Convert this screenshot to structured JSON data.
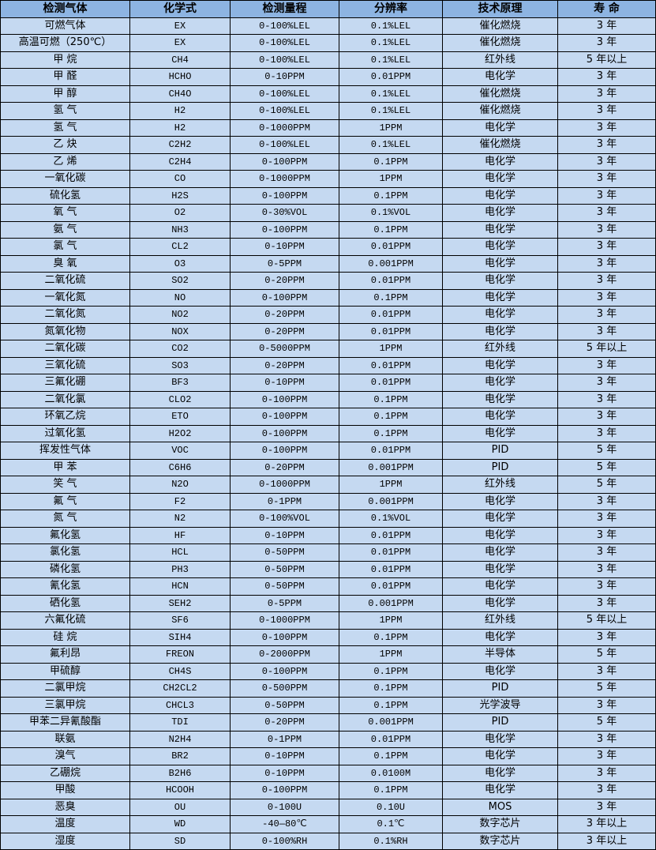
{
  "colors": {
    "header_bg": "#8db4e2",
    "row_bg": "#c5d9f1"
  },
  "headers": [
    "检测气体",
    "化学式",
    "检测量程",
    "分辨率",
    "技术原理",
    "寿 命"
  ],
  "rows": [
    [
      "可燃气体",
      "EX",
      "0-100%LEL",
      "0.1%LEL",
      "催化燃烧",
      "3 年"
    ],
    [
      "高温可燃（250℃）",
      "EX",
      "0-100%LEL",
      "0.1%LEL",
      "催化燃烧",
      "3 年"
    ],
    [
      "甲 烷",
      "CH4",
      "0-100%LEL",
      "0.1%LEL",
      "红外线",
      "5 年以上"
    ],
    [
      "甲 醛",
      "HCHO",
      "0-10PPM",
      "0.01PPM",
      "电化学",
      "3 年"
    ],
    [
      "甲 醇",
      "CH4O",
      "0-100%LEL",
      "0.1%LEL",
      "催化燃烧",
      "3 年"
    ],
    [
      "氢 气",
      "H2",
      "0-100%LEL",
      "0.1%LEL",
      "催化燃烧",
      "3 年"
    ],
    [
      "氢 气",
      "H2",
      "0-1000PPM",
      "1PPM",
      "电化学",
      "3 年"
    ],
    [
      "乙 炔",
      "C2H2",
      "0-100%LEL",
      "0.1%LEL",
      "催化燃烧",
      "3 年"
    ],
    [
      "乙 烯",
      "C2H4",
      "0-100PPM",
      "0.1PPM",
      "电化学",
      "3 年"
    ],
    [
      "一氧化碳",
      "CO",
      "0-1000PPM",
      "1PPM",
      "电化学",
      "3 年"
    ],
    [
      "硫化氢",
      "H2S",
      "0-100PPM",
      "0.1PPM",
      "电化学",
      "3 年"
    ],
    [
      "氧 气",
      "O2",
      "0-30%VOL",
      "0.1%VOL",
      "电化学",
      "3 年"
    ],
    [
      "氨 气",
      "NH3",
      "0-100PPM",
      "0.1PPM",
      "电化学",
      "3 年"
    ],
    [
      "氯 气",
      "CL2",
      "0-10PPM",
      "0.01PPM",
      "电化学",
      "3 年"
    ],
    [
      "臭 氧",
      "O3",
      "0-5PPM",
      "0.001PPM",
      "电化学",
      "3 年"
    ],
    [
      "二氧化硫",
      "SO2",
      "0-20PPM",
      "0.01PPM",
      "电化学",
      "3 年"
    ],
    [
      "一氧化氮",
      "NO",
      "0-100PPM",
      "0.1PPM",
      "电化学",
      "3 年"
    ],
    [
      "二氧化氮",
      "NO2",
      "0-20PPM",
      "0.01PPM",
      "电化学",
      "3 年"
    ],
    [
      "氮氧化物",
      "NOX",
      "0-20PPM",
      "0.01PPM",
      "电化学",
      "3 年"
    ],
    [
      "二氧化碳",
      "CO2",
      "0-5000PPM",
      "1PPM",
      "红外线",
      "5 年以上"
    ],
    [
      "三氧化硫",
      "SO3",
      "0-20PPM",
      "0.01PPM",
      "电化学",
      "3 年"
    ],
    [
      "三氟化硼",
      "BF3",
      "0-10PPM",
      "0.01PPM",
      "电化学",
      "3 年"
    ],
    [
      "二氧化氯",
      "CLO2",
      "0-100PPM",
      "0.1PPM",
      "电化学",
      "3 年"
    ],
    [
      "环氧乙烷",
      "ETO",
      "0-100PPM",
      "0.1PPM",
      "电化学",
      "3 年"
    ],
    [
      "过氧化氢",
      "H2O2",
      "0-100PPM",
      "0.1PPM",
      "电化学",
      "3 年"
    ],
    [
      "挥发性气体",
      "VOC",
      "0-100PPM",
      "0.01PPM",
      "PID",
      "5 年"
    ],
    [
      "甲 苯",
      "C6H6",
      "0-20PPM",
      "0.001PPM",
      "PID",
      "5 年"
    ],
    [
      "笑 气",
      "N2O",
      "0-1000PPM",
      "1PPM",
      "红外线",
      "5 年"
    ],
    [
      "氟 气",
      "F2",
      "0-1PPM",
      "0.001PPM",
      "电化学",
      "3 年"
    ],
    [
      "氮 气",
      "N2",
      "0-100%VOL",
      "0.1%VOL",
      "电化学",
      "3 年"
    ],
    [
      "氟化氢",
      "HF",
      "0-10PPM",
      "0.01PPM",
      "电化学",
      "3 年"
    ],
    [
      "氯化氢",
      "HCL",
      "0-50PPM",
      "0.01PPM",
      "电化学",
      "3 年"
    ],
    [
      "磷化氢",
      "PH3",
      "0-50PPM",
      "0.01PPM",
      "电化学",
      "3 年"
    ],
    [
      "氰化氢",
      "HCN",
      "0-50PPM",
      "0.01PPM",
      "电化学",
      "3 年"
    ],
    [
      "硒化氢",
      "SEH2",
      "0-5PPM",
      "0.001PPM",
      "电化学",
      "3 年"
    ],
    [
      "六氟化硫",
      "SF6",
      "0-1000PPM",
      "1PPM",
      "红外线",
      "5 年以上"
    ],
    [
      "硅 烷",
      "SIH4",
      "0-100PPM",
      "0.1PPM",
      "电化学",
      "3 年"
    ],
    [
      "氟利昂",
      "FREON",
      "0-2000PPM",
      "1PPM",
      "半导体",
      "5 年"
    ],
    [
      "甲硫醇",
      "CH4S",
      "0-100PPM",
      "0.1PPM",
      "电化学",
      "3 年"
    ],
    [
      "二氯甲烷",
      "CH2CL2",
      "0-500PPM",
      "0.1PPM",
      "PID",
      "5 年"
    ],
    [
      "三氯甲烷",
      "CHCL3",
      "0-50PPM",
      "0.1PPM",
      "光学波导",
      "3 年"
    ],
    [
      "甲苯二异氰酸酯",
      "TDI",
      "0-20PPM",
      "0.001PPM",
      "PID",
      "5 年"
    ],
    [
      "联氨",
      "N2H4",
      "0-1PPM",
      "0.01PPM",
      "电化学",
      "3 年"
    ],
    [
      "溴气",
      "BR2",
      "0-10PPM",
      "0.1PPM",
      "电化学",
      "3 年"
    ],
    [
      "乙硼烷",
      "B2H6",
      "0-10PPM",
      "0.0100M",
      "电化学",
      "3 年"
    ],
    [
      "甲酸",
      "HCOOH",
      "0-100PPM",
      "0.1PPM",
      "电化学",
      "3 年"
    ],
    [
      "恶臭",
      "OU",
      "0-100U",
      "0.10U",
      "MOS",
      "3 年"
    ],
    [
      "温度",
      "WD",
      "-40—80℃",
      "0.1℃",
      "数字芯片",
      "3 年以上"
    ],
    [
      "湿度",
      "SD",
      "0-100%RH",
      "0.1%RH",
      "数字芯片",
      "3 年以上"
    ]
  ]
}
